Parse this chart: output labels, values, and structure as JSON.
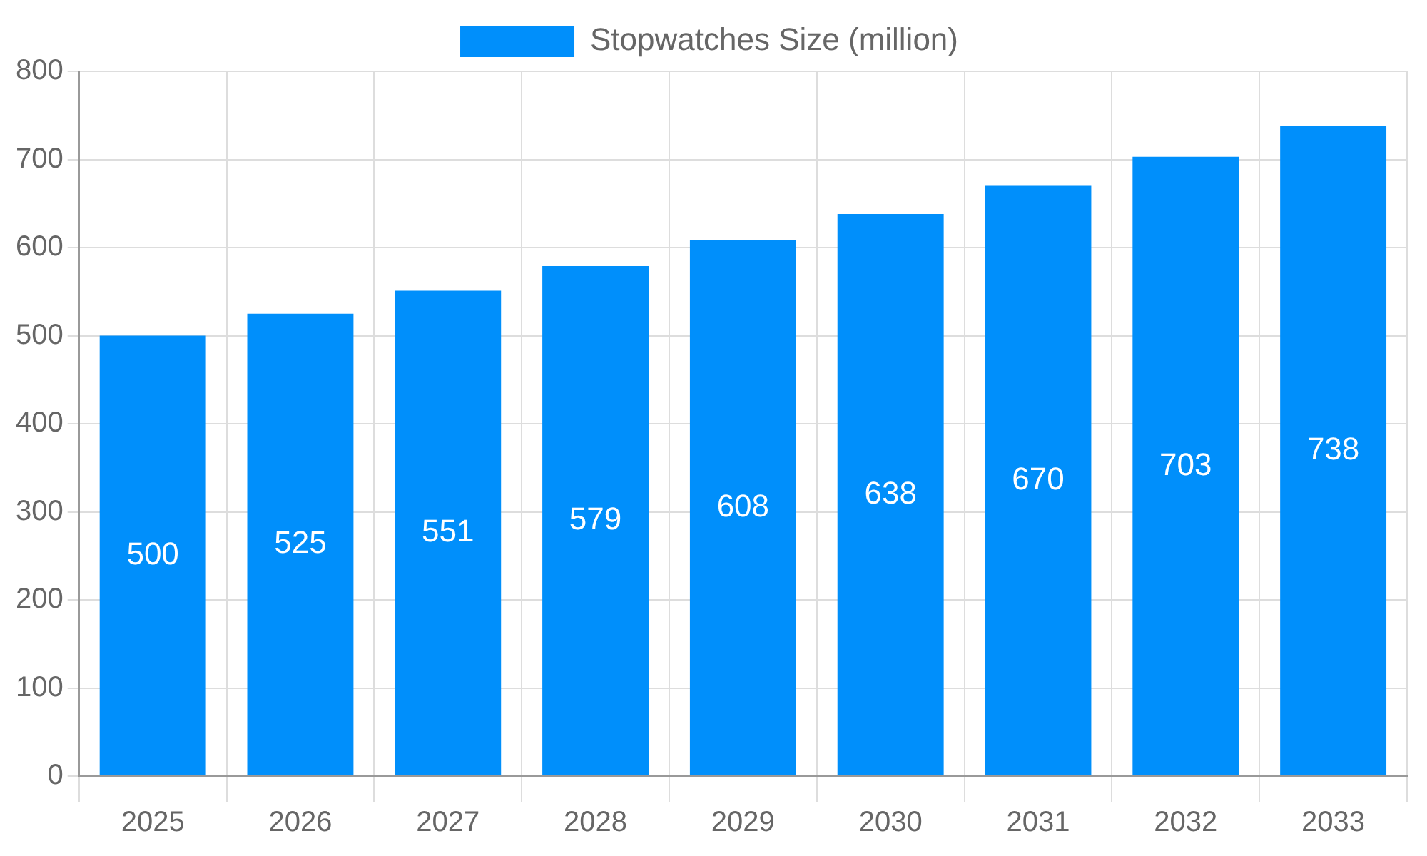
{
  "chart_data": {
    "type": "bar",
    "categories": [
      "2025",
      "2026",
      "2027",
      "2028",
      "2029",
      "2030",
      "2031",
      "2032",
      "2033"
    ],
    "series": [
      {
        "name": "Stopwatches Size (million)",
        "color": "#008ffb",
        "values": [
          500,
          525,
          551,
          579,
          608,
          638,
          670,
          703,
          738
        ]
      }
    ],
    "ylim": [
      0,
      800
    ],
    "yticks": [
      0,
      100,
      200,
      300,
      400,
      500,
      600,
      700,
      800
    ],
    "grid": true,
    "legend": "top",
    "data_labels": true
  }
}
